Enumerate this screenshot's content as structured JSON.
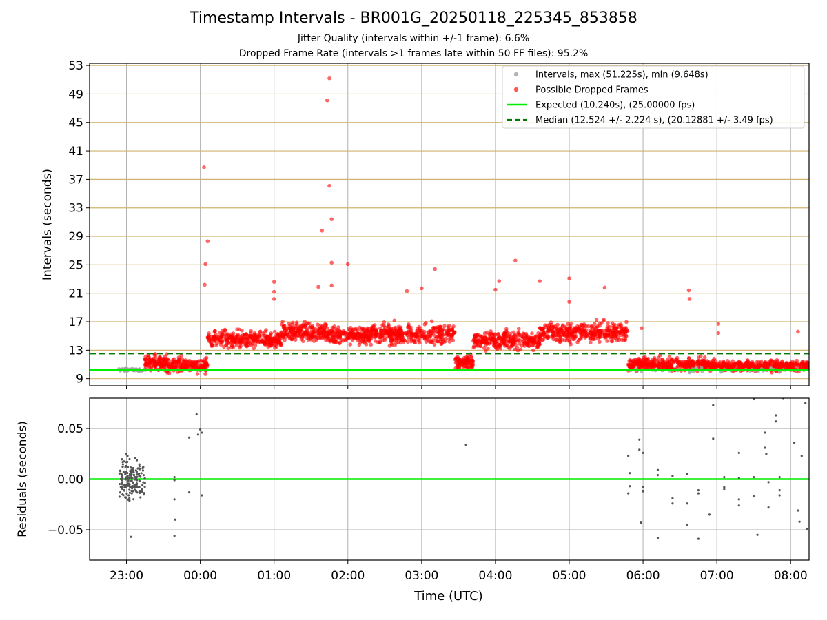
{
  "page": {
    "title": "Timestamp Intervals - BR001G_20250118_225345_853858",
    "subtitle_1": "Jitter Quality (intervals within +/-1 frame): 6.6%",
    "subtitle_2": "Dropped Frame Rate (intervals >1 frames late within 50 FF files): 95.2%"
  },
  "colors": {
    "grid": "#b0b0b0",
    "hline": "#d2b26e",
    "intervals": "#a0a0a0",
    "dropped": "#ff0000",
    "expected": "#00ee00",
    "median": "#007700",
    "residual": "#555555"
  },
  "chart_data": [
    {
      "type": "scatter",
      "panel": "intervals",
      "xlabel": "",
      "ylabel": "Intervals (seconds)",
      "ylim": [
        8,
        53.3
      ],
      "yticks": [
        9,
        13,
        17,
        21,
        25,
        29,
        33,
        37,
        41,
        45,
        49,
        53
      ],
      "xlim_hours": [
        22.5,
        32.25
      ],
      "legend": {
        "position": "top-right",
        "entries": [
          {
            "label": "Intervals, max (51.225s), min (9.648s)",
            "kind": "marker-gray"
          },
          {
            "label": "Possible Dropped Frames",
            "kind": "marker-red"
          },
          {
            "label": "Expected (10.240s), (25.00000 fps)",
            "kind": "line-green"
          },
          {
            "label": "Median (12.524 +/- 2.224 s), (20.12881 +/- 3.49 fps)",
            "kind": "line-dashed"
          }
        ]
      },
      "expected": 10.24,
      "median": 12.524,
      "regimes": [
        {
          "start": 22.88,
          "end": 23.25,
          "mean": 10.24,
          "spread": 0.12,
          "count": 60,
          "kind": "normal"
        },
        {
          "start": 23.25,
          "end": 23.55,
          "mean": 11.3,
          "spread": 0.7,
          "count": 120,
          "kind": "dropped"
        },
        {
          "start": 23.55,
          "end": 24.1,
          "mean": 10.9,
          "spread": 0.7,
          "count": 180,
          "kind": "dropped"
        },
        {
          "start": 24.1,
          "end": 25.1,
          "mean": 14.5,
          "spread": 0.8,
          "count": 320,
          "kind": "dropped"
        },
        {
          "start": 25.1,
          "end": 25.7,
          "mean": 15.6,
          "spread": 0.8,
          "count": 200,
          "kind": "dropped"
        },
        {
          "start": 25.7,
          "end": 26.3,
          "mean": 15.1,
          "spread": 0.9,
          "count": 200,
          "kind": "dropped"
        },
        {
          "start": 26.3,
          "end": 27.45,
          "mean": 15.3,
          "spread": 0.9,
          "count": 360,
          "kind": "dropped"
        },
        {
          "start": 27.45,
          "end": 27.7,
          "mean": 11.2,
          "spread": 0.7,
          "count": 100,
          "kind": "dropped"
        },
        {
          "start": 27.7,
          "end": 28.6,
          "mean": 14.4,
          "spread": 0.8,
          "count": 300,
          "kind": "dropped"
        },
        {
          "start": 28.6,
          "end": 29.8,
          "mean": 15.5,
          "spread": 0.9,
          "count": 380,
          "kind": "dropped"
        },
        {
          "start": 29.8,
          "end": 31.0,
          "mean": 11.0,
          "spread": 0.6,
          "count": 420,
          "kind": "dropped"
        },
        {
          "start": 31.0,
          "end": 32.25,
          "mean": 10.8,
          "spread": 0.5,
          "count": 380,
          "kind": "dropped"
        },
        {
          "start": 29.8,
          "end": 32.25,
          "mean": 10.2,
          "spread": 0.2,
          "count": 40,
          "kind": "normal"
        }
      ],
      "outliers": [
        {
          "x": 24.05,
          "y": 38.7
        },
        {
          "x": 24.1,
          "y": 28.3
        },
        {
          "x": 24.07,
          "y": 25.1
        },
        {
          "x": 24.06,
          "y": 22.2
        },
        {
          "x": 25.0,
          "y": 22.6
        },
        {
          "x": 25.0,
          "y": 21.2
        },
        {
          "x": 25.0,
          "y": 20.2
        },
        {
          "x": 25.72,
          "y": 48.1
        },
        {
          "x": 25.75,
          "y": 51.2
        },
        {
          "x": 25.75,
          "y": 36.1
        },
        {
          "x": 25.65,
          "y": 29.8
        },
        {
          "x": 25.78,
          "y": 31.4
        },
        {
          "x": 25.78,
          "y": 25.3
        },
        {
          "x": 25.78,
          "y": 22.1
        },
        {
          "x": 25.6,
          "y": 21.9
        },
        {
          "x": 26.0,
          "y": 25.1
        },
        {
          "x": 27.18,
          "y": 24.4
        },
        {
          "x": 27.0,
          "y": 21.7
        },
        {
          "x": 26.8,
          "y": 21.3
        },
        {
          "x": 28.0,
          "y": 21.5
        },
        {
          "x": 28.05,
          "y": 22.7
        },
        {
          "x": 28.27,
          "y": 25.6
        },
        {
          "x": 28.6,
          "y": 22.7
        },
        {
          "x": 29.0,
          "y": 23.1
        },
        {
          "x": 29.0,
          "y": 19.8
        },
        {
          "x": 29.48,
          "y": 21.8
        },
        {
          "x": 30.62,
          "y": 21.4
        },
        {
          "x": 30.63,
          "y": 20.2
        },
        {
          "x": 31.02,
          "y": 16.7
        },
        {
          "x": 31.02,
          "y": 15.4
        },
        {
          "x": 29.98,
          "y": 16.1
        },
        {
          "x": 32.1,
          "y": 15.6
        }
      ]
    },
    {
      "type": "scatter",
      "panel": "residuals",
      "xlabel": "Time (UTC)",
      "ylabel": "Residuals (seconds)",
      "ylim": [
        -0.08,
        0.08
      ],
      "yticks": [
        {
          "v": 0.05,
          "label": "0.05"
        },
        {
          "v": 0.0,
          "label": "0.00"
        },
        {
          "v": -0.05,
          "label": "−0.05"
        }
      ],
      "xticks": [
        {
          "v": 23,
          "label": "23:00"
        },
        {
          "v": 24,
          "label": "00:00"
        },
        {
          "v": 25,
          "label": "01:00"
        },
        {
          "v": 26,
          "label": "02:00"
        },
        {
          "v": 27,
          "label": "03:00"
        },
        {
          "v": 28,
          "label": "04:00"
        },
        {
          "v": 29,
          "label": "05:00"
        },
        {
          "v": 30,
          "label": "06:00"
        },
        {
          "v": 31,
          "label": "07:00"
        },
        {
          "v": 32,
          "label": "08:00"
        }
      ],
      "cluster": {
        "start": 22.9,
        "end": 23.25,
        "count": 160,
        "spread": 0.014
      },
      "points": [
        {
          "x": 23.06,
          "y": -0.057
        },
        {
          "x": 23.12,
          "y": 0.002
        },
        {
          "x": 23.65,
          "y": 0.002
        },
        {
          "x": 23.65,
          "y": -0.001
        },
        {
          "x": 23.65,
          "y": -0.02
        },
        {
          "x": 23.66,
          "y": -0.04
        },
        {
          "x": 23.65,
          "y": -0.056
        },
        {
          "x": 23.85,
          "y": 0.041
        },
        {
          "x": 23.85,
          "y": -0.013
        },
        {
          "x": 23.95,
          "y": 0.064
        },
        {
          "x": 23.97,
          "y": 0.044
        },
        {
          "x": 24.0,
          "y": 0.049
        },
        {
          "x": 24.02,
          "y": 0.046
        },
        {
          "x": 24.02,
          "y": -0.016
        },
        {
          "x": 27.6,
          "y": 0.034
        },
        {
          "x": 29.8,
          "y": 0.023
        },
        {
          "x": 29.82,
          "y": 0.006
        },
        {
          "x": 29.82,
          "y": -0.007
        },
        {
          "x": 29.8,
          "y": -0.014
        },
        {
          "x": 29.95,
          "y": 0.039
        },
        {
          "x": 29.95,
          "y": 0.029
        },
        {
          "x": 29.97,
          "y": -0.043
        },
        {
          "x": 30.0,
          "y": 0.026
        },
        {
          "x": 30.0,
          "y": -0.008
        },
        {
          "x": 30.0,
          "y": -0.012
        },
        {
          "x": 30.2,
          "y": 0.009
        },
        {
          "x": 30.2,
          "y": 0.004
        },
        {
          "x": 30.2,
          "y": -0.058
        },
        {
          "x": 30.4,
          "y": 0.003
        },
        {
          "x": 30.4,
          "y": -0.019
        },
        {
          "x": 30.4,
          "y": -0.024
        },
        {
          "x": 30.6,
          "y": 0.005
        },
        {
          "x": 30.6,
          "y": -0.024
        },
        {
          "x": 30.6,
          "y": -0.045
        },
        {
          "x": 30.75,
          "y": -0.011
        },
        {
          "x": 30.75,
          "y": -0.014
        },
        {
          "x": 30.75,
          "y": -0.059
        },
        {
          "x": 30.95,
          "y": 0.073
        },
        {
          "x": 30.95,
          "y": 0.04
        },
        {
          "x": 30.9,
          "y": -0.035
        },
        {
          "x": 31.1,
          "y": 0.002
        },
        {
          "x": 31.1,
          "y": -0.008
        },
        {
          "x": 31.1,
          "y": -0.01
        },
        {
          "x": 31.3,
          "y": 0.026
        },
        {
          "x": 31.3,
          "y": 0.001
        },
        {
          "x": 31.3,
          "y": -0.02
        },
        {
          "x": 31.3,
          "y": -0.026
        },
        {
          "x": 31.5,
          "y": 0.079
        },
        {
          "x": 31.5,
          "y": 0.002
        },
        {
          "x": 31.5,
          "y": -0.017
        },
        {
          "x": 31.55,
          "y": -0.055
        },
        {
          "x": 31.65,
          "y": 0.046
        },
        {
          "x": 31.65,
          "y": 0.031
        },
        {
          "x": 31.67,
          "y": 0.025
        },
        {
          "x": 31.7,
          "y": -0.003
        },
        {
          "x": 31.7,
          "y": -0.028
        },
        {
          "x": 31.8,
          "y": 0.063
        },
        {
          "x": 31.8,
          "y": 0.057
        },
        {
          "x": 31.85,
          "y": 0.002
        },
        {
          "x": 31.85,
          "y": -0.011
        },
        {
          "x": 31.85,
          "y": -0.016
        },
        {
          "x": 31.9,
          "y": 0.08
        },
        {
          "x": 32.05,
          "y": 0.036
        },
        {
          "x": 32.1,
          "y": -0.031
        },
        {
          "x": 32.12,
          "y": -0.042
        },
        {
          "x": 32.15,
          "y": 0.023
        },
        {
          "x": 32.2,
          "y": 0.075
        },
        {
          "x": 32.22,
          "y": -0.049
        }
      ]
    }
  ]
}
